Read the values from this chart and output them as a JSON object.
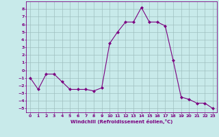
{
  "x": [
    0,
    1,
    2,
    3,
    4,
    5,
    6,
    7,
    8,
    9,
    10,
    11,
    12,
    13,
    14,
    15,
    16,
    17,
    18,
    19,
    20,
    21,
    22,
    23
  ],
  "y": [
    -1,
    -2.5,
    -0.5,
    -0.5,
    -1.5,
    -2.5,
    -2.5,
    -2.5,
    -2.7,
    -2.3,
    3.5,
    5.0,
    6.3,
    6.3,
    8.2,
    6.3,
    6.3,
    5.8,
    1.3,
    -3.5,
    -3.8,
    -4.3,
    -4.3,
    -5.0
  ],
  "line_color": "#7B0080",
  "marker": "D",
  "marker_size": 2,
  "background_color": "#c8eaea",
  "grid_color": "#9fbfbf",
  "xlabel": "Windchill (Refroidissement éolien,°C)",
  "xlabel_color": "#7B0080",
  "tick_color": "#7B0080",
  "ylim": [
    -5.5,
    9.0
  ],
  "xlim": [
    -0.5,
    23.5
  ],
  "yticks": [
    -5,
    -4,
    -3,
    -2,
    -1,
    0,
    1,
    2,
    3,
    4,
    5,
    6,
    7,
    8
  ],
  "xticks": [
    0,
    1,
    2,
    3,
    4,
    5,
    6,
    7,
    8,
    9,
    10,
    11,
    12,
    13,
    14,
    15,
    16,
    17,
    18,
    19,
    20,
    21,
    22,
    23
  ]
}
